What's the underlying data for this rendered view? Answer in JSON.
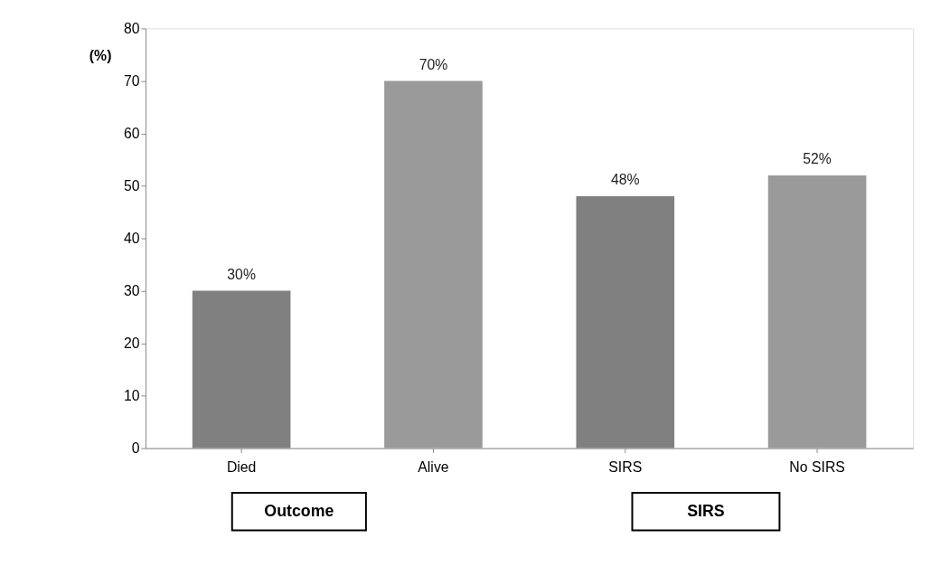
{
  "chart_data": {
    "type": "bar",
    "ylabel": "(%)",
    "categories": [
      "Died",
      "Alive",
      "SIRS",
      "No SIRS"
    ],
    "values": [
      30,
      70,
      48,
      52
    ],
    "colors": [
      "#808080",
      "#9a9a9a",
      "#808080",
      "#9a9a9a"
    ],
    "value_labels": [
      "30%",
      "70%",
      "48%",
      "52%"
    ],
    "ylim": [
      0,
      80
    ],
    "yticks": [
      0,
      10,
      20,
      30,
      40,
      50,
      60,
      70,
      80
    ],
    "grid": false,
    "annotations": [
      "Outcome",
      "SIRS"
    ]
  }
}
